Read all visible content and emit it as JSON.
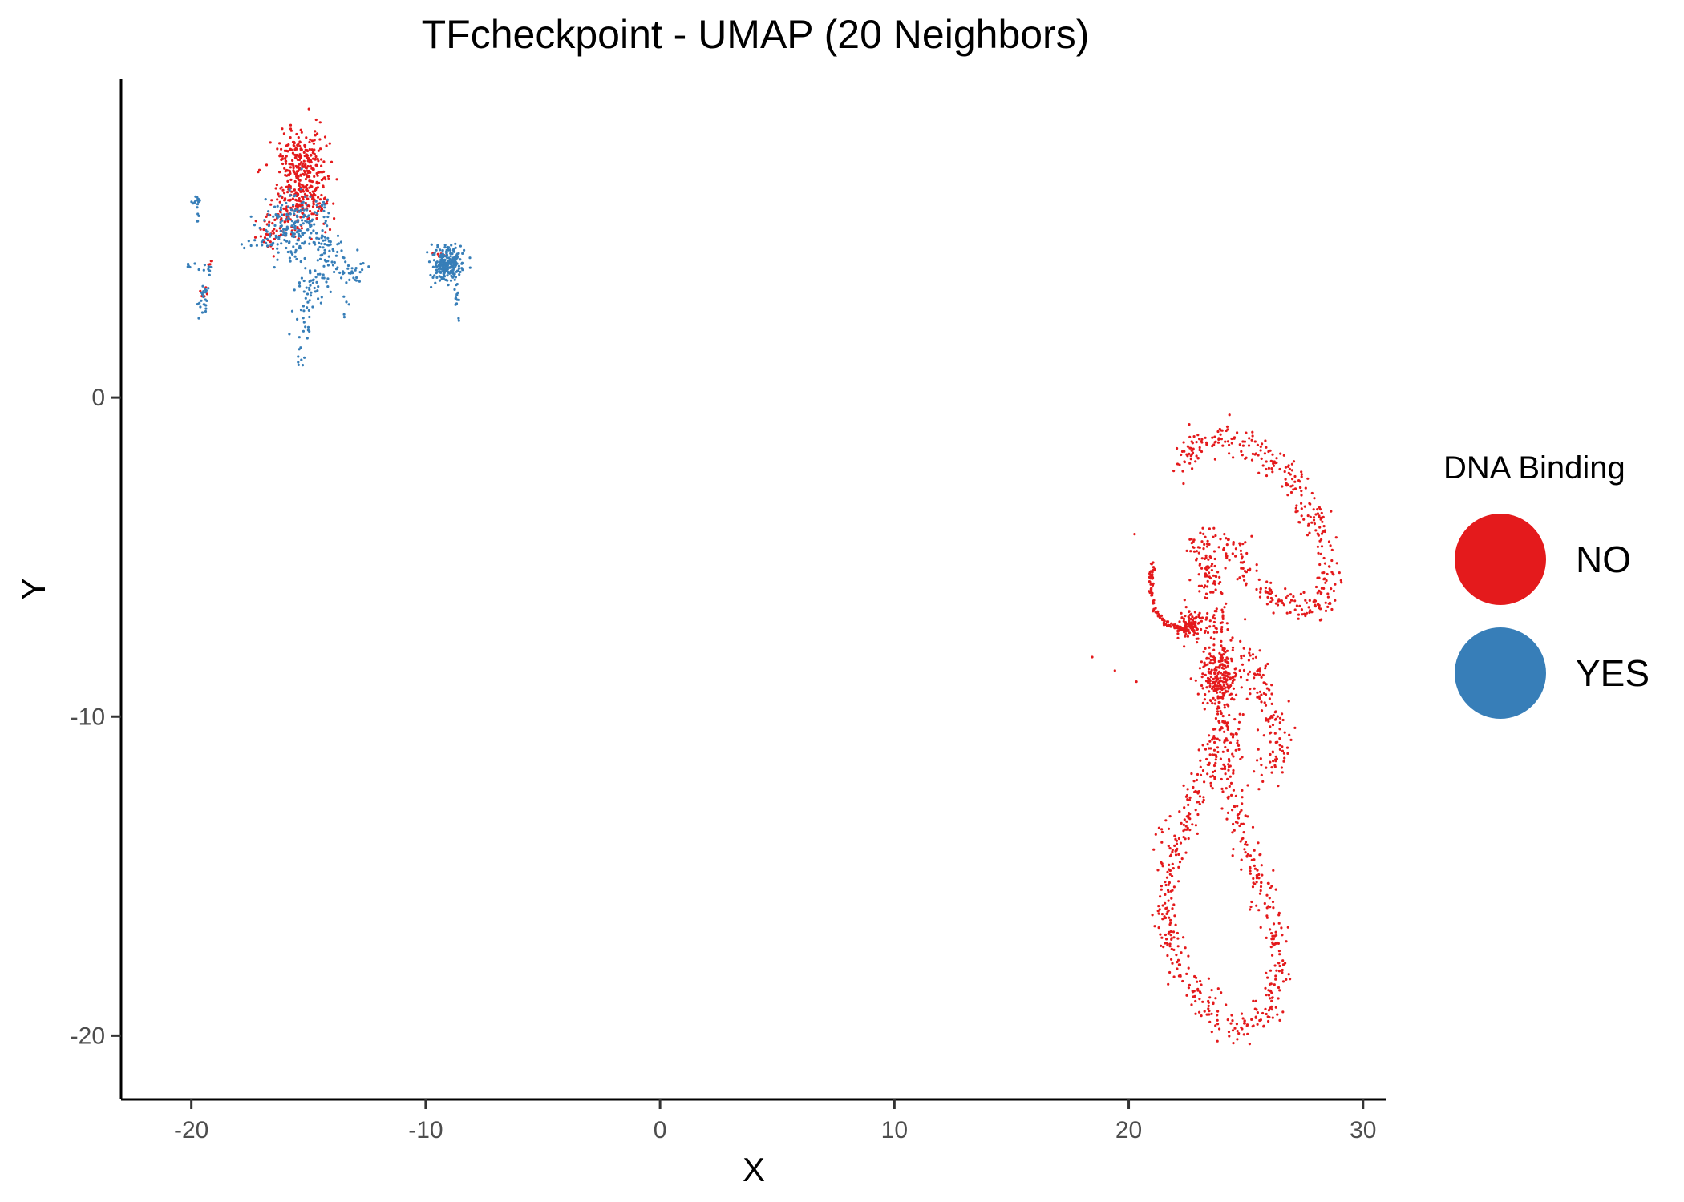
{
  "chart_data": {
    "type": "scatter",
    "title": "TFcheckpoint - UMAP (20 Neighbors)",
    "xlabel": "X",
    "ylabel": "Y",
    "xlim": [
      -23,
      31
    ],
    "ylim": [
      -22,
      10
    ],
    "x_ticks": [
      -20,
      -10,
      0,
      10,
      20,
      30
    ],
    "y_ticks": [
      0,
      -10,
      -20
    ],
    "x_tick_labels": [
      "-20",
      "-10",
      "0",
      "10",
      "20",
      "30"
    ],
    "y_tick_labels": [
      "0",
      "-10",
      "-20"
    ],
    "grid": false,
    "legend": {
      "title": "DNA Binding",
      "placement": "right",
      "entries": [
        "NO",
        "YES"
      ]
    },
    "series": [
      {
        "name": "NO",
        "color": "#E41A1C",
        "clusters": [
          {
            "shape": "blob",
            "cx": -15.3,
            "cy": 7.3,
            "sx": 0.55,
            "sy": 0.55,
            "n": 260
          },
          {
            "shape": "blob",
            "cx": -15.2,
            "cy": 6.2,
            "sx": 0.6,
            "sy": 0.4,
            "n": 140
          },
          {
            "shape": "blob",
            "cx": -16.2,
            "cy": 5.5,
            "sx": 0.5,
            "sy": 0.3,
            "n": 60
          },
          {
            "shape": "blob",
            "cx": -16.8,
            "cy": 5.0,
            "sx": 0.2,
            "sy": 0.2,
            "n": 15
          },
          {
            "shape": "blob",
            "cx": -9.4,
            "cy": 4.5,
            "sx": 0.12,
            "sy": 0.1,
            "n": 6
          },
          {
            "shape": "blob",
            "cx": -19.5,
            "cy": 3.3,
            "sx": 0.15,
            "sy": 0.15,
            "n": 5
          },
          {
            "shape": "blob",
            "cx": -19.2,
            "cy": 4.3,
            "sx": 0.1,
            "sy": 0.1,
            "n": 3
          },
          {
            "shape": "path",
            "points": [
              [
                22.0,
                -2.2
              ],
              [
                22.8,
                -1.4
              ],
              [
                23.8,
                -1.2
              ],
              [
                25.0,
                -1.4
              ],
              [
                26.3,
                -2.1
              ],
              [
                27.5,
                -3.1
              ],
              [
                28.3,
                -4.3
              ],
              [
                28.6,
                -5.6
              ],
              [
                28.2,
                -6.5
              ],
              [
                27.0,
                -6.6
              ],
              [
                25.8,
                -6.1
              ],
              [
                25.0,
                -5.3
              ],
              [
                24.0,
                -4.6
              ],
              [
                23.0,
                -4.3
              ]
            ],
            "spread": 0.28,
            "n": 420
          },
          {
            "shape": "path",
            "points": [
              [
                21.0,
                -5.2
              ],
              [
                20.95,
                -6.0
              ],
              [
                21.1,
                -6.7
              ],
              [
                21.6,
                -7.1
              ],
              [
                22.3,
                -7.25
              ],
              [
                23.0,
                -7.1
              ]
            ],
            "spread": 0.05,
            "n": 130
          },
          {
            "shape": "blob",
            "cx": 22.7,
            "cy": -7.1,
            "sx": 0.35,
            "sy": 0.22,
            "n": 90
          },
          {
            "shape": "blob",
            "cx": 23.8,
            "cy": -8.8,
            "sx": 0.38,
            "sy": 0.45,
            "n": 180
          },
          {
            "shape": "path",
            "points": [
              [
                23.5,
                -5.5
              ],
              [
                23.7,
                -6.8
              ],
              [
                24.0,
                -8.2
              ],
              [
                24.2,
                -9.8
              ],
              [
                23.6,
                -11.0
              ],
              [
                23.0,
                -12.3
              ],
              [
                22.2,
                -13.5
              ],
              [
                21.7,
                -14.8
              ],
              [
                21.5,
                -16.0
              ],
              [
                21.8,
                -17.4
              ],
              [
                22.6,
                -18.5
              ],
              [
                23.7,
                -19.4
              ],
              [
                24.9,
                -19.8
              ],
              [
                25.9,
                -19.3
              ],
              [
                26.4,
                -18.0
              ],
              [
                26.2,
                -16.6
              ],
              [
                25.6,
                -15.3
              ],
              [
                25.0,
                -14.0
              ],
              [
                24.6,
                -12.7
              ],
              [
                24.3,
                -11.5
              ],
              [
                24.4,
                -10.3
              ]
            ],
            "spread": 0.3,
            "n": 700
          },
          {
            "shape": "path",
            "points": [
              [
                24.8,
                -7.8
              ],
              [
                25.6,
                -8.8
              ],
              [
                26.2,
                -10.0
              ],
              [
                26.4,
                -11.2
              ],
              [
                25.8,
                -11.8
              ]
            ],
            "spread": 0.3,
            "n": 130
          },
          {
            "shape": "path",
            "points": [
              [
                22.6,
                -4.5
              ],
              [
                23.2,
                -5.0
              ],
              [
                23.6,
                -5.8
              ]
            ],
            "spread": 0.22,
            "n": 40
          },
          {
            "shape": "blob",
            "cx": 20.3,
            "cy": -4.3,
            "sx": 0.05,
            "sy": 0.05,
            "n": 1
          },
          {
            "shape": "blob",
            "cx": 18.5,
            "cy": -8.1,
            "sx": 0.05,
            "sy": 0.05,
            "n": 1
          },
          {
            "shape": "blob",
            "cx": 19.3,
            "cy": -8.5,
            "sx": 0.05,
            "sy": 0.05,
            "n": 1
          },
          {
            "shape": "blob",
            "cx": 20.3,
            "cy": -8.9,
            "sx": 0.05,
            "sy": 0.05,
            "n": 1
          }
        ]
      },
      {
        "name": "YES",
        "color": "#377EB8",
        "clusters": [
          {
            "shape": "blob",
            "cx": -15.4,
            "cy": 5.4,
            "sx": 0.65,
            "sy": 0.5,
            "n": 190
          },
          {
            "shape": "blob",
            "cx": -16.7,
            "cy": 5.0,
            "sx": 0.25,
            "sy": 0.2,
            "n": 22
          },
          {
            "shape": "blob",
            "cx": -14.3,
            "cy": 4.7,
            "sx": 0.3,
            "sy": 0.35,
            "n": 35
          },
          {
            "shape": "blob",
            "cx": -13.3,
            "cy": 4.0,
            "sx": 0.3,
            "sy": 0.2,
            "n": 35
          },
          {
            "shape": "blob",
            "cx": -14.8,
            "cy": 3.6,
            "sx": 0.35,
            "sy": 0.35,
            "n": 45
          },
          {
            "shape": "blob",
            "cx": -15.2,
            "cy": 2.3,
            "sx": 0.2,
            "sy": 0.45,
            "n": 18
          },
          {
            "shape": "blob",
            "cx": -15.3,
            "cy": 1.3,
            "sx": 0.08,
            "sy": 0.2,
            "n": 8
          },
          {
            "shape": "blob",
            "cx": -13.4,
            "cy": 2.8,
            "sx": 0.08,
            "sy": 0.2,
            "n": 5
          },
          {
            "shape": "blob",
            "cx": -9.1,
            "cy": 4.2,
            "sx": 0.3,
            "sy": 0.28,
            "n": 240
          },
          {
            "shape": "blob",
            "cx": -8.7,
            "cy": 3.2,
            "sx": 0.08,
            "sy": 0.18,
            "n": 10
          },
          {
            "shape": "blob",
            "cx": -8.55,
            "cy": 2.4,
            "sx": 0.04,
            "sy": 0.08,
            "n": 2
          },
          {
            "shape": "blob",
            "cx": -19.8,
            "cy": 6.2,
            "sx": 0.1,
            "sy": 0.08,
            "n": 14
          },
          {
            "shape": "blob",
            "cx": -19.7,
            "cy": 5.6,
            "sx": 0.05,
            "sy": 0.1,
            "n": 4
          },
          {
            "shape": "blob",
            "cx": -19.5,
            "cy": 3.1,
            "sx": 0.15,
            "sy": 0.25,
            "n": 24
          },
          {
            "shape": "blob",
            "cx": -20.0,
            "cy": 4.1,
            "sx": 0.25,
            "sy": 0.05,
            "n": 7
          },
          {
            "shape": "blob",
            "cx": -19.3,
            "cy": 4.1,
            "sx": 0.15,
            "sy": 0.12,
            "n": 7
          },
          {
            "shape": "blob",
            "cx": -17.5,
            "cy": 4.8,
            "sx": 0.2,
            "sy": 0.08,
            "n": 6
          }
        ]
      }
    ]
  }
}
